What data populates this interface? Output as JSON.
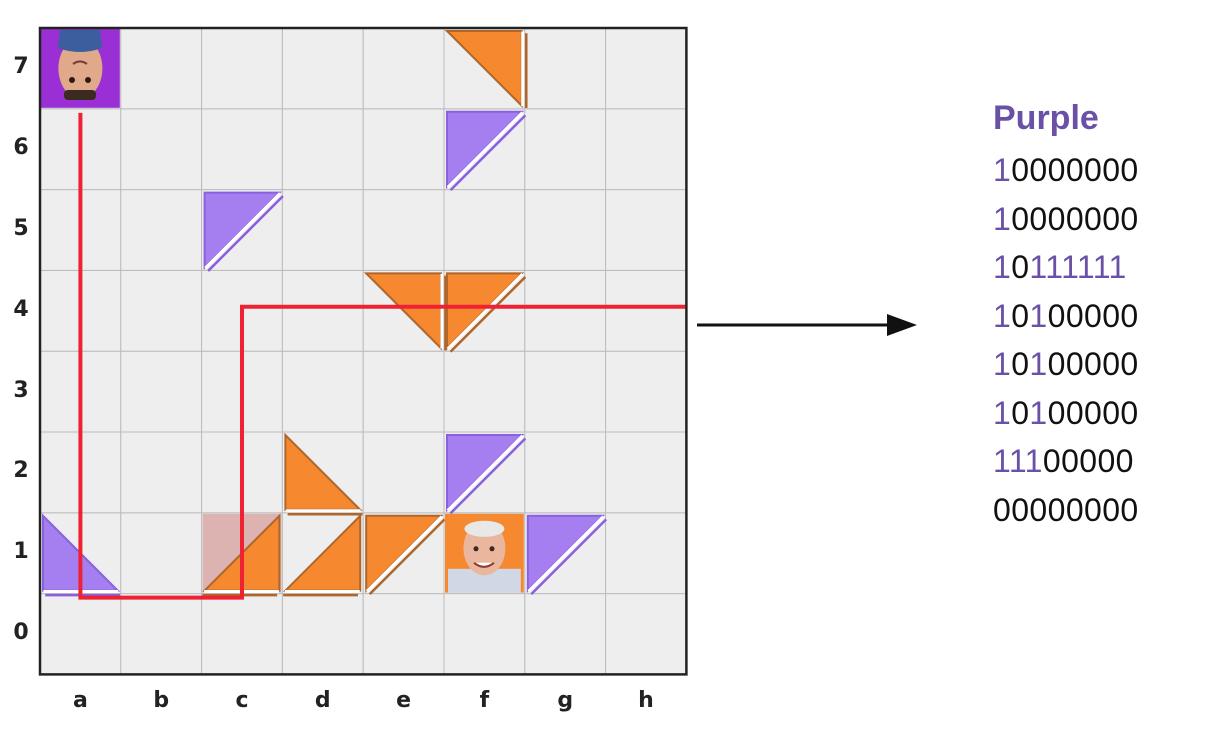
{
  "board": {
    "files": [
      "a",
      "b",
      "c",
      "d",
      "e",
      "f",
      "g",
      "h"
    ],
    "ranks": [
      "7",
      "6",
      "5",
      "4",
      "3",
      "2",
      "1",
      "0"
    ],
    "colors": {
      "square": "#eeeeee",
      "grid": "#bcbcbc",
      "border": "#222222",
      "purple": "#a57ff0",
      "purple_edge": "#8a5fe0",
      "orange": "#f6892f",
      "orange_edge": "#b0652a",
      "laser": "#ee2233",
      "highlight": "#d8a8a6"
    },
    "pieces": [
      {
        "name": "purple-king",
        "square": "a7",
        "color": "purple",
        "kind": "king"
      },
      {
        "name": "orange-king",
        "square": "f1",
        "color": "orange",
        "kind": "king"
      },
      {
        "name": "orange-mirror-f7",
        "square": "f7",
        "color": "orange",
        "corner": "tr"
      },
      {
        "name": "purple-mirror-f6",
        "square": "f6",
        "color": "purple",
        "corner": "tl"
      },
      {
        "name": "purple-mirror-c5",
        "square": "c5",
        "color": "purple",
        "corner": "tl"
      },
      {
        "name": "orange-mirror-e4",
        "square": "e4",
        "color": "orange",
        "corner": "tr"
      },
      {
        "name": "orange-mirror-f4",
        "square": "f4",
        "color": "orange",
        "corner": "tl"
      },
      {
        "name": "orange-mirror-d2",
        "square": "d2",
        "color": "orange",
        "corner": "bl"
      },
      {
        "name": "purple-mirror-f2",
        "square": "f2",
        "color": "purple",
        "corner": "tl"
      },
      {
        "name": "purple-mirror-a1",
        "square": "a1",
        "color": "purple",
        "corner": "bl"
      },
      {
        "name": "orange-mirror-c1",
        "square": "c1",
        "color": "orange",
        "corner": "br"
      },
      {
        "name": "orange-mirror-d1",
        "square": "d1",
        "color": "orange",
        "corner": "br"
      },
      {
        "name": "orange-mirror-e1",
        "square": "e1",
        "color": "orange",
        "corner": "tl"
      },
      {
        "name": "purple-mirror-g1",
        "square": "g1",
        "color": "purple",
        "corner": "tl"
      }
    ],
    "highlighted_squares": [
      "c1"
    ],
    "laser_path": [
      {
        "file": 0.5,
        "rank": 6.95
      },
      {
        "file": 0.5,
        "rank": 0.95
      },
      {
        "file": 2.5,
        "rank": 0.95
      },
      {
        "file": 2.5,
        "rank": 4.55
      },
      {
        "file": 8.0,
        "rank": 4.55
      }
    ]
  },
  "panel": {
    "title": "Purple",
    "rows": [
      "10000000",
      "10000000",
      "10111111",
      "10100000",
      "10100000",
      "10100000",
      "11100000",
      "00000000"
    ],
    "highlight_color": "#6a51a6"
  }
}
